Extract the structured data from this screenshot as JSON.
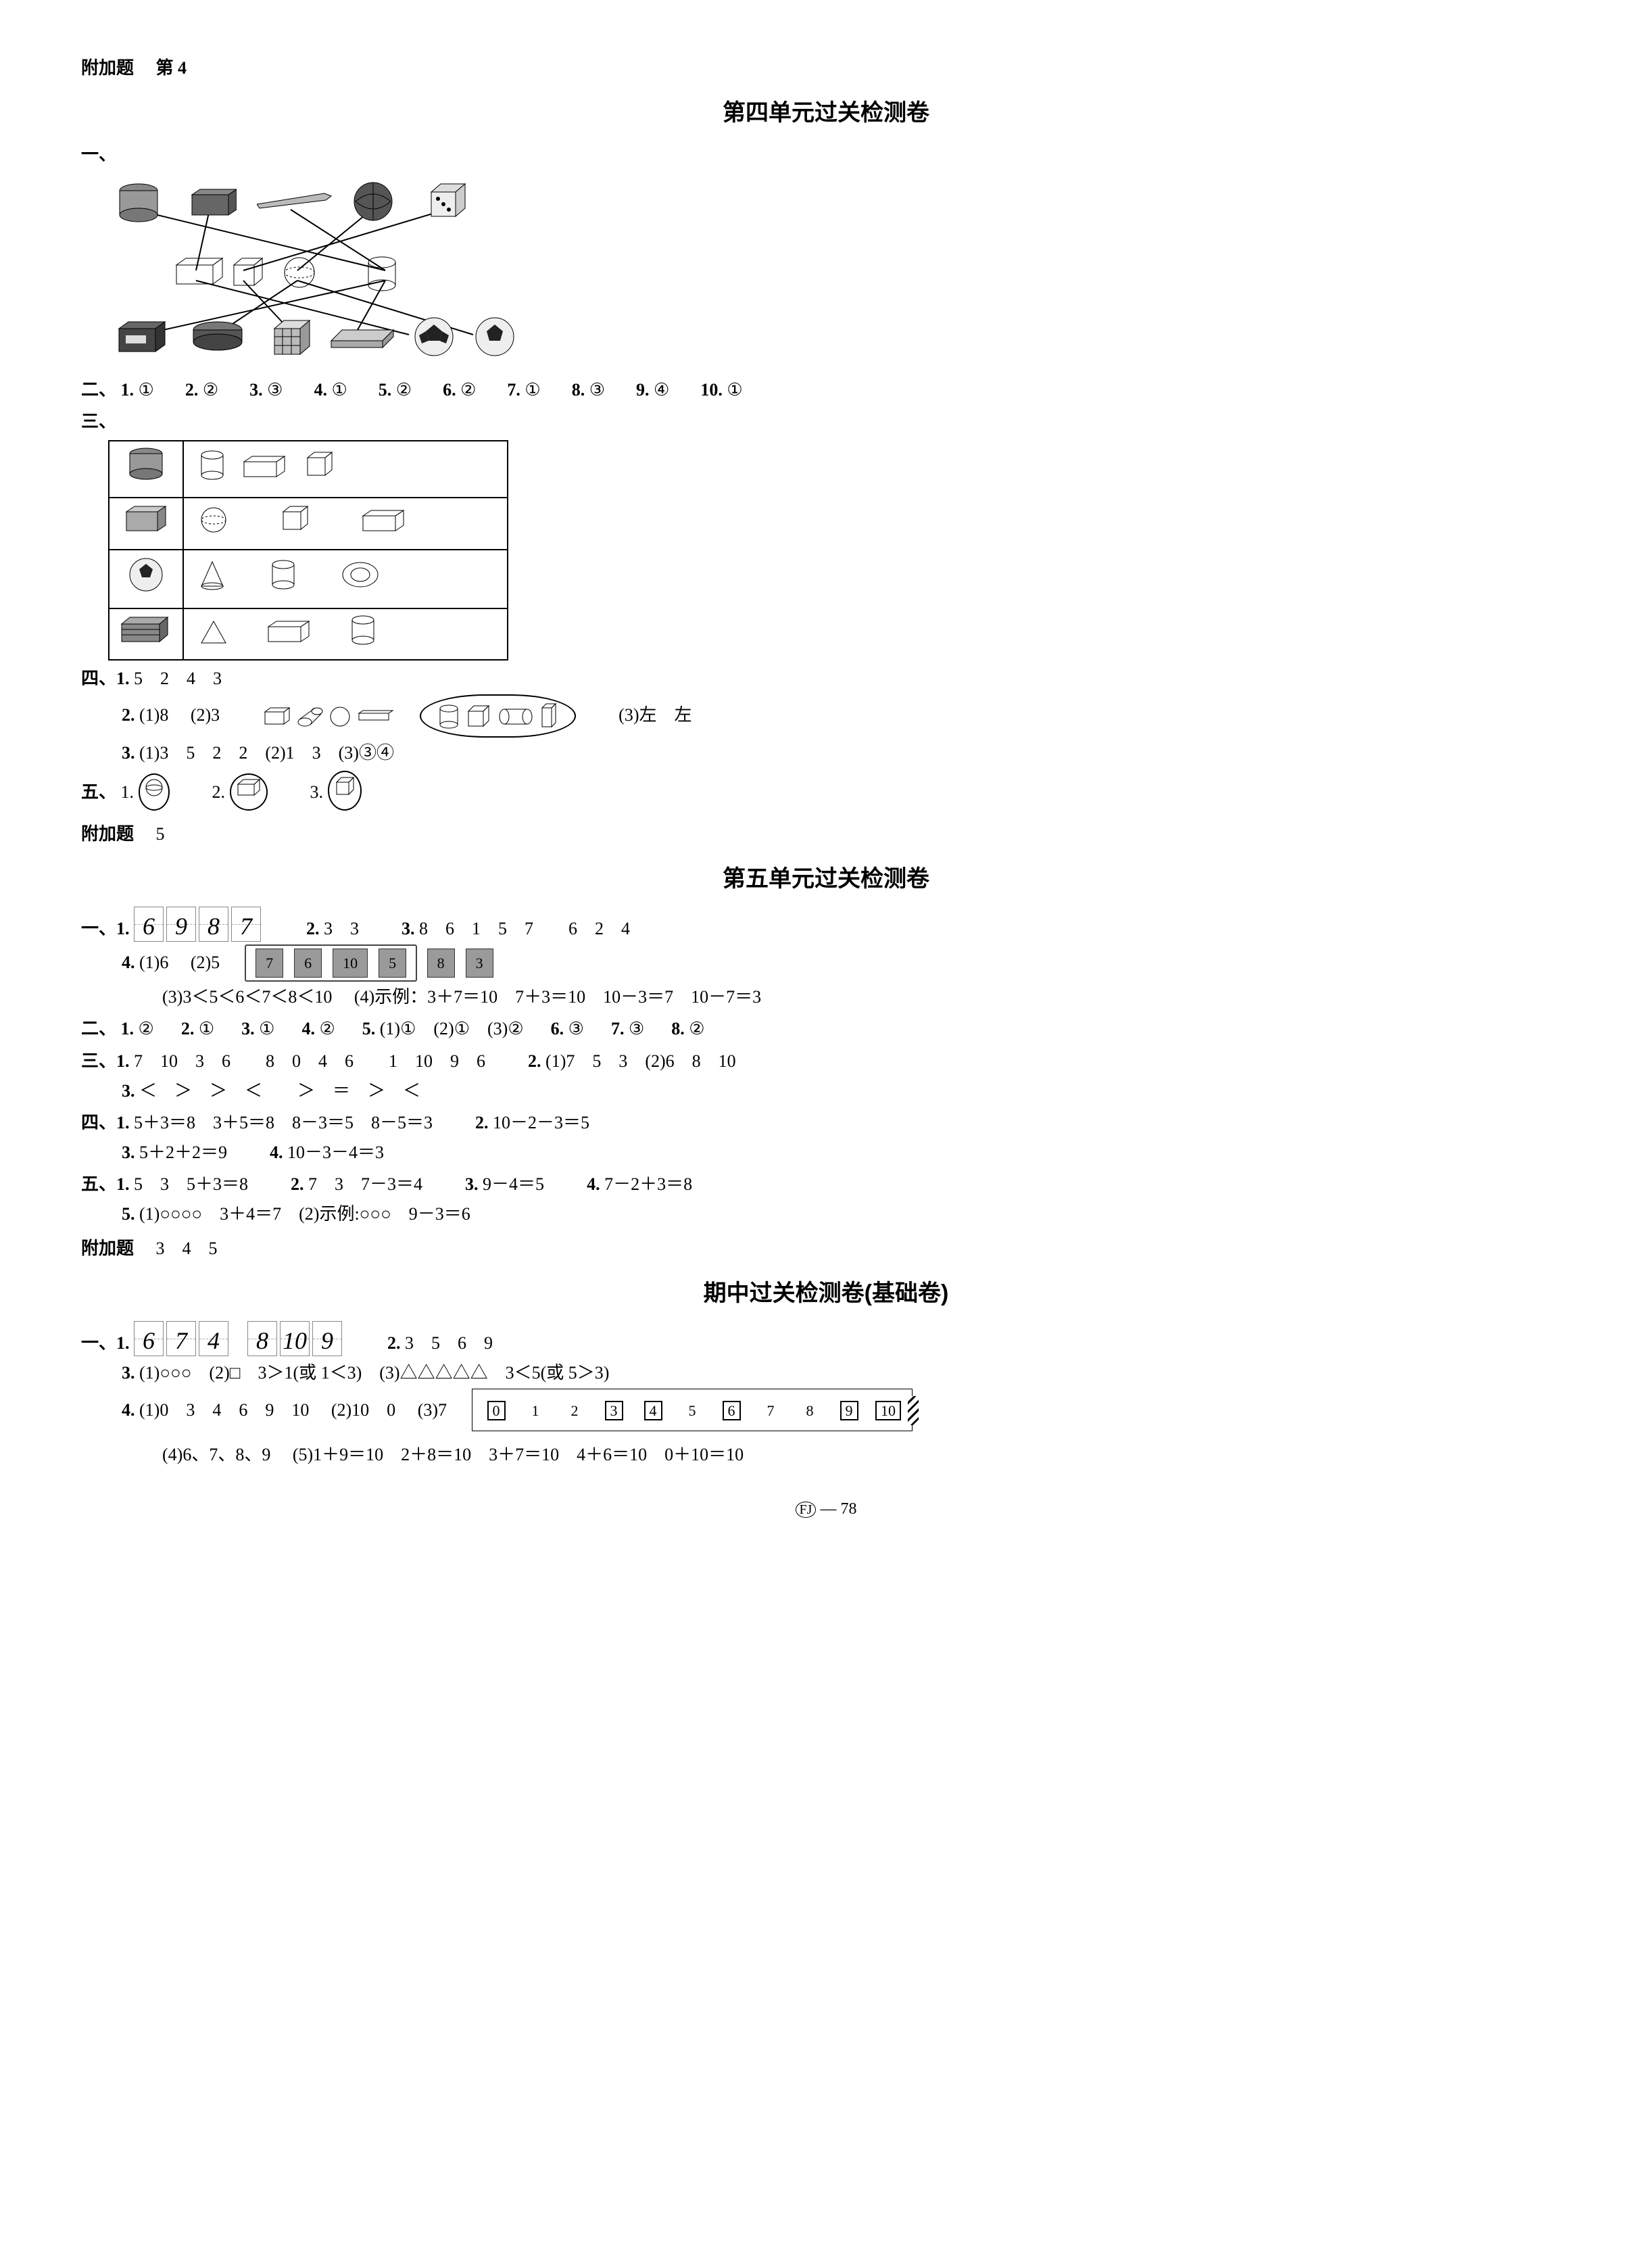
{
  "top": {
    "fujia": "附加题",
    "num": "第 4"
  },
  "unit4": {
    "title": "第四单元过关检测卷",
    "section1_label": "一、",
    "section2_label": "二、",
    "s2": [
      {
        "q": "1.",
        "a": "①"
      },
      {
        "q": "2.",
        "a": "②"
      },
      {
        "q": "3.",
        "a": "③"
      },
      {
        "q": "4.",
        "a": "①"
      },
      {
        "q": "5.",
        "a": "②"
      },
      {
        "q": "6.",
        "a": "②"
      },
      {
        "q": "7.",
        "a": "①"
      },
      {
        "q": "8.",
        "a": "③"
      },
      {
        "q": "9.",
        "a": "④"
      },
      {
        "q": "10.",
        "a": "①"
      }
    ],
    "section3_label": "三、",
    "section4_label": "四、",
    "s4_1": {
      "q": "1.",
      "vals": "5　2　4　3"
    },
    "s4_2": {
      "q": "2.",
      "p1": "(1)8",
      "p2": "(2)3",
      "p3": "(3)左　左"
    },
    "s4_3": {
      "q": "3.",
      "text": "(1)3　5　2　2　(2)1　3　(3)③④"
    },
    "section5_label": "五、",
    "s5": {
      "q1": "1.",
      "q2": "2.",
      "q3": "3."
    },
    "fujia2": {
      "label": "附加题",
      "val": "5"
    }
  },
  "unit5": {
    "title": "第五单元过关检测卷",
    "s1_label": "一、",
    "s1_1": {
      "q": "1.",
      "digits": [
        "6",
        "9",
        "8",
        "7"
      ]
    },
    "s1_2": {
      "q": "2.",
      "a": "3　3"
    },
    "s1_3": {
      "q": "3.",
      "a": "8　6　1　5　7　　6　2　4"
    },
    "s1_4": {
      "q": "4.",
      "p1": "(1)6",
      "p2": "(2)5",
      "grouped": [
        "7",
        "6",
        "10",
        "5"
      ],
      "loose": [
        "8",
        "3"
      ],
      "p3": "(3)3＜5＜6＜7＜8＜10",
      "p4": "(4)示例：3＋7＝10　7＋3＝10　10－3＝7　10－7＝3"
    },
    "s2_label": "二、",
    "s2": [
      {
        "q": "1.",
        "a": "②"
      },
      {
        "q": "2.",
        "a": "①"
      },
      {
        "q": "3.",
        "a": "①"
      },
      {
        "q": "4.",
        "a": "②"
      },
      {
        "q": "5.",
        "a": "(1)①　(2)①　(3)②"
      },
      {
        "q": "6.",
        "a": "③"
      },
      {
        "q": "7.",
        "a": "③"
      },
      {
        "q": "8.",
        "a": "②"
      }
    ],
    "s3_label": "三、",
    "s3_1": {
      "q": "1.",
      "a": "7　10　3　6　　8　0　4　6　　1　10　9　6"
    },
    "s3_2": {
      "q": "2.",
      "a": "(1)7　5　3　(2)6　8　10"
    },
    "s3_3": {
      "q": "3.",
      "a": "＜　＞　＞　＜　　＞　＝　＞　＜"
    },
    "s4_label": "四、",
    "s4_1": {
      "q": "1.",
      "a": "5＋3＝8　3＋5＝8　8－3＝5　8－5＝3"
    },
    "s4_2": {
      "q": "2.",
      "a": "10－2－3＝5"
    },
    "s4_3": {
      "q": "3.",
      "a": "5＋2＋2＝9"
    },
    "s4_4": {
      "q": "4.",
      "a": "10－3－4＝3"
    },
    "s5_label": "五、",
    "s5_1": {
      "q": "1.",
      "a": "5　3　5＋3＝8"
    },
    "s5_2": {
      "q": "2.",
      "a": "7　3　7－3＝4"
    },
    "s5_3": {
      "q": "3.",
      "a": "9－4＝5"
    },
    "s5_4": {
      "q": "4.",
      "a": "7－2＋3＝8"
    },
    "s5_5": {
      "q": "5.",
      "a": "(1)○○○○　3＋4＝7　(2)示例:○○○　9－3＝6"
    },
    "fujia": {
      "label": "附加题",
      "val": "3　4　5"
    }
  },
  "mid": {
    "title": "期中过关检测卷(基础卷)",
    "s1_label": "一、",
    "s1_1": {
      "q": "1.",
      "digits": [
        "6",
        "7",
        "4",
        "",
        "8",
        "10",
        "9"
      ]
    },
    "s1_2": {
      "q": "2.",
      "a": "3　5　6　9"
    },
    "s1_3": {
      "q": "3.",
      "a": "(1)○○○　(2)□　3＞1(或 1＜3)　(3)△△△△△　3＜5(或 5＞3)"
    },
    "s1_4": {
      "q": "4.",
      "p1": "(1)0　3　4　6　9　10",
      "p2": "(2)10　0",
      "p3": "(3)7",
      "numline": [
        {
          "v": "0",
          "boxed": true
        },
        {
          "v": "1",
          "boxed": false
        },
        {
          "v": "2",
          "boxed": false
        },
        {
          "v": "3",
          "boxed": true
        },
        {
          "v": "4",
          "boxed": true
        },
        {
          "v": "5",
          "boxed": false
        },
        {
          "v": "6",
          "boxed": true
        },
        {
          "v": "7",
          "boxed": false
        },
        {
          "v": "8",
          "boxed": false
        },
        {
          "v": "9",
          "boxed": true
        },
        {
          "v": "10",
          "boxed": true
        }
      ],
      "p4": "(4)6、7、8、9",
      "p5": "(5)1＋9＝10　2＋8＝10　3＋7＝10　4＋6＝10　0＋10＝10"
    }
  },
  "footer": {
    "circ": "FJ",
    "dash": "—",
    "page": "78"
  }
}
